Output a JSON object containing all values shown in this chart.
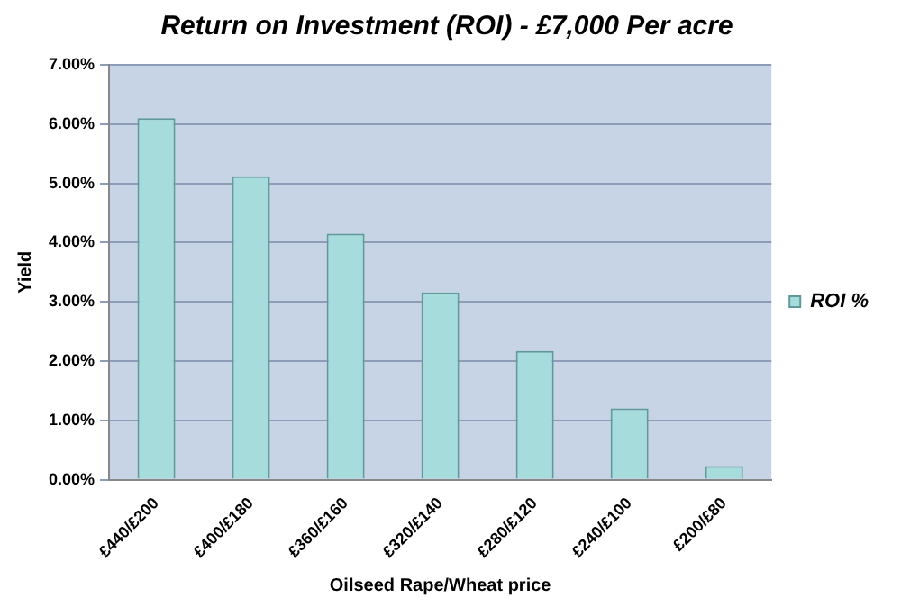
{
  "chart_data": {
    "type": "bar",
    "title": "Return on Investment (ROI) - £7,000 Per acre",
    "xlabel": "Oilseed Rape/Wheat price",
    "ylabel": "Yield",
    "categories": [
      "£440/£200",
      "£400/£180",
      "£360/£160",
      "£320/£140",
      "£280/£120",
      "£240/£100",
      "£200/£80"
    ],
    "series": [
      {
        "name": "ROI %",
        "color": "#a6dcdc",
        "values": [
          6.1,
          5.12,
          4.15,
          3.16,
          2.17,
          1.2,
          0.23
        ]
      }
    ],
    "ylim": [
      0,
      7
    ],
    "yticks": [
      {
        "value": 0,
        "label": "0.00%"
      },
      {
        "value": 1,
        "label": "1.00%"
      },
      {
        "value": 2,
        "label": "2.00%"
      },
      {
        "value": 3,
        "label": "3.00%"
      },
      {
        "value": 4,
        "label": "4.00%"
      },
      {
        "value": 5,
        "label": "5.00%"
      },
      {
        "value": 6,
        "label": "6.00%"
      },
      {
        "value": 7,
        "label": "7.00%"
      }
    ],
    "grid": "y",
    "legend": "right"
  }
}
